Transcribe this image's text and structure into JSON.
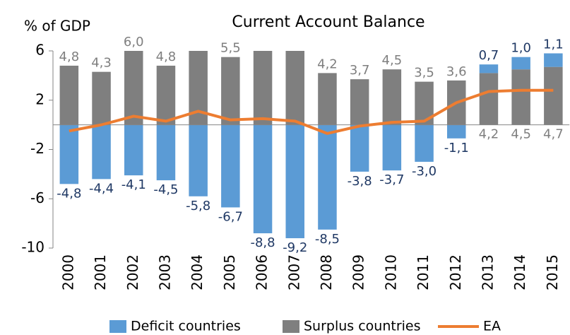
{
  "chart_data": {
    "type": "bar",
    "title": "Current Account Balance",
    "y_label": "% of GDP",
    "categories": [
      "2000",
      "2001",
      "2002",
      "2003",
      "2004",
      "2005",
      "2006",
      "2007",
      "2008",
      "2009",
      "2010",
      "2011",
      "2012",
      "2013",
      "2014",
      "2015"
    ],
    "series": [
      {
        "name": "Deficit countries",
        "color": "#5b9bd5",
        "label_color": "#1f3864",
        "values": [
          -4.8,
          -4.4,
          -4.1,
          -4.5,
          -5.8,
          -6.7,
          -8.8,
          -9.2,
          -8.5,
          -3.8,
          -3.7,
          -3.0,
          -1.1,
          0.7,
          1.0,
          1.1
        ],
        "value_labels": [
          "-4,8",
          "-4,4",
          "-4,1",
          "-4,5",
          "-5,8",
          "-6,7",
          "-8,8",
          "-9,2",
          "-8,5",
          "-3,8",
          "-3,7",
          "-3,0",
          "-1,1",
          "0,7",
          "1,0",
          "1,1"
        ]
      },
      {
        "name": "Surplus countries",
        "color": "#7f7f7f",
        "label_color": "#7f7f7f",
        "values": [
          4.8,
          4.3,
          6.0,
          4.8,
          6.0,
          5.5,
          6.0,
          6.0,
          4.2,
          3.7,
          4.5,
          3.5,
          3.6,
          4.2,
          4.5,
          4.7
        ],
        "value_labels": [
          "4,8",
          "4,3",
          "6,0",
          "4,8",
          null,
          "5,5",
          null,
          null,
          "4,2",
          "3,7",
          "4,5",
          "3,5",
          "3,6",
          "4,2",
          "4,5",
          "4,7"
        ]
      },
      {
        "name": "EA",
        "type": "line",
        "color": "#ed7d31",
        "values": [
          -0.5,
          0.0,
          0.7,
          0.3,
          1.1,
          0.4,
          0.5,
          0.3,
          -0.7,
          -0.1,
          0.2,
          0.3,
          1.8,
          2.7,
          2.8,
          2.8
        ]
      }
    ],
    "ylim": [
      -10,
      6
    ],
    "yticks": [
      6,
      2,
      -2,
      -6,
      -10
    ],
    "grid": false
  }
}
